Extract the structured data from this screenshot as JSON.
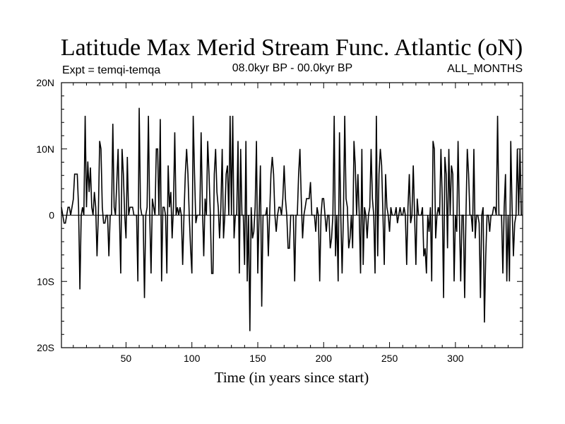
{
  "chart_data": {
    "type": "line",
    "title": "Latitude Max Merid Stream Func. Atlantic (oN)",
    "subtitle_left": "Expt = temqi-temqa",
    "subtitle_center": "08.0kyr BP - 00.0kyr BP",
    "subtitle_right": "ALL_MONTHS",
    "xlabel": "Time (in years since start)",
    "ylabel": "",
    "xlim": [
      1,
      351
    ],
    "ylim": [
      -20,
      20
    ],
    "x_ticks": [
      50,
      100,
      150,
      200,
      250,
      300
    ],
    "x_tick_labels": [
      "50",
      "100",
      "150",
      "200",
      "250",
      "300"
    ],
    "y_ticks": [
      -20,
      -10,
      0,
      10,
      20
    ],
    "y_tick_labels": [
      "20S",
      "10S",
      "0",
      "10N",
      "20N"
    ],
    "grid": false,
    "zero_line": true,
    "line_color": "#000000",
    "series": [
      {
        "x": [
          1,
          2,
          3,
          4,
          5,
          6,
          7,
          8,
          9,
          10,
          11,
          12,
          13,
          14,
          15,
          16,
          17,
          18,
          19,
          20,
          21,
          22,
          23,
          24,
          25,
          26,
          27,
          28,
          29,
          30,
          31,
          32,
          33,
          34,
          35,
          36,
          37,
          38,
          39,
          40,
          41,
          42,
          43,
          44,
          45,
          46,
          47,
          48,
          49,
          50,
          51,
          52,
          53,
          54,
          55,
          56,
          57,
          58,
          59,
          60,
          61,
          62,
          63,
          64,
          65,
          66,
          67,
          68,
          69,
          70,
          71,
          72,
          73,
          74,
          75,
          76,
          77,
          78,
          79,
          80,
          81,
          82,
          83,
          84,
          85,
          86,
          87,
          88,
          89,
          90,
          91,
          92,
          93,
          94,
          95,
          96,
          97,
          98,
          99,
          100,
          101,
          102,
          103,
          104,
          105,
          106,
          107,
          108,
          109,
          110,
          111,
          112,
          113,
          114,
          115,
          116,
          117,
          118,
          119,
          120,
          121,
          122,
          123,
          124,
          125,
          126,
          127,
          128,
          129,
          130,
          131,
          132,
          133,
          134,
          135,
          136,
          137,
          138,
          139,
          140,
          141,
          142,
          143,
          144,
          145,
          146,
          147,
          148,
          149,
          150,
          151,
          152,
          153,
          154,
          155,
          156,
          157,
          158,
          159,
          160,
          161,
          162,
          163,
          164,
          165,
          166,
          167,
          168,
          169,
          170,
          171,
          172,
          173,
          174,
          175,
          176,
          177,
          178,
          179,
          180,
          181,
          182,
          183,
          184,
          185,
          186,
          187,
          188,
          189,
          190,
          191,
          192,
          193,
          194,
          195,
          196,
          197,
          198,
          199,
          200,
          201,
          202,
          203,
          204,
          205,
          206,
          207,
          208,
          209,
          210,
          211,
          212,
          213,
          214,
          215,
          216,
          217,
          218,
          219,
          220,
          221,
          222,
          223,
          224,
          225,
          226,
          227,
          228,
          229,
          230,
          231,
          232,
          233,
          234,
          235,
          236,
          237,
          238,
          239,
          240,
          241,
          242,
          243,
          244,
          245,
          246,
          247,
          248,
          249,
          250,
          251,
          252,
          253,
          254,
          255,
          256,
          257,
          258,
          259,
          260,
          261,
          262,
          263,
          264,
          265,
          266,
          267,
          268,
          269,
          270,
          271,
          272,
          273,
          274,
          275,
          276,
          277,
          278,
          279,
          280,
          281,
          282,
          283,
          284,
          285,
          286,
          287,
          288,
          289,
          290,
          291,
          292,
          293,
          294,
          295,
          296,
          297,
          298,
          299,
          300,
          301,
          302,
          303,
          304,
          305,
          306,
          307,
          308,
          309,
          310,
          311,
          312,
          313,
          314,
          315,
          316,
          317,
          318,
          319,
          320,
          321,
          322,
          323,
          324,
          325,
          326,
          327,
          328,
          329,
          330,
          331,
          332,
          333,
          334,
          335,
          336,
          337,
          338,
          339,
          340,
          341,
          342,
          343,
          344,
          345,
          346,
          347,
          348,
          349,
          350,
          351
        ],
        "y": [
          1.2,
          0,
          -1.2,
          -1.2,
          0,
          1.2,
          1.2,
          0,
          1.2,
          2.4,
          6.2,
          6.2,
          6.2,
          1.2,
          -11.2,
          0,
          1.2,
          0,
          15,
          1.2,
          8.1,
          3.5,
          7.2,
          1.2,
          0,
          3.5,
          1.2,
          -6.2,
          0,
          11.2,
          10,
          1.2,
          -1.2,
          -1.2,
          0,
          0,
          -6.2,
          0,
          0,
          13.8,
          1.2,
          0,
          5,
          10,
          0,
          -8.8,
          10,
          6.2,
          0,
          -3.5,
          8.8,
          0,
          1.2,
          1.2,
          1.2,
          0,
          0,
          0,
          -10,
          16.2,
          1.2,
          0,
          0,
          -12.5,
          0,
          1.2,
          15,
          0,
          -8.8,
          2.5,
          1.2,
          0,
          10,
          10,
          0,
          14.5,
          -10,
          1.2,
          1.2,
          0,
          -8.8,
          7.5,
          1.2,
          3.5,
          -3.5,
          1.2,
          12.5,
          0,
          1.2,
          0,
          1.2,
          0,
          -7.5,
          0,
          6.2,
          10,
          6.2,
          0,
          -5,
          -8.8,
          15,
          6.2,
          -1.2,
          0,
          0,
          0,
          12.5,
          1.2,
          -6.2,
          2.5,
          0,
          11.2,
          6.2,
          0,
          -8.8,
          -8.8,
          6.2,
          10,
          3.5,
          1.2,
          -3.5,
          1.2,
          10,
          -3.5,
          0,
          6.2,
          7.5,
          0,
          15,
          0,
          15,
          -3.5,
          0,
          0,
          11.2,
          -8.8,
          10,
          0,
          0,
          -7.5,
          11.2,
          -10,
          0,
          -17.5,
          1.2,
          -3.5,
          -2.5,
          1.2,
          11.2,
          -8.8,
          0,
          7.5,
          -13.8,
          0,
          0,
          0,
          1.2,
          -6.2,
          0,
          6.2,
          8.8,
          6.2,
          0,
          -2.5,
          0,
          1.2,
          1.2,
          0,
          2.5,
          7.5,
          2.5,
          0,
          -5,
          -5,
          0,
          0,
          0,
          -10,
          0,
          0,
          6.2,
          10,
          2.5,
          -3.5,
          0,
          1.2,
          2.5,
          2.5,
          2.5,
          5,
          0,
          0,
          0,
          -2.5,
          1.2,
          0,
          -10,
          0,
          2.5,
          2.5,
          0,
          -2.5,
          0,
          0,
          -5,
          -3.5,
          0,
          15,
          -6.2,
          0,
          -10,
          12.5,
          0,
          -8.8,
          0,
          15,
          2.5,
          1.2,
          -5,
          -3.5,
          0,
          -5,
          11.2,
          7.5,
          0,
          6.2,
          0,
          -8.8,
          10,
          -7.5,
          1.2,
          0,
          -3.5,
          0,
          1.2,
          10,
          2.5,
          0,
          -8.8,
          15,
          -6.2,
          6.2,
          10,
          7.5,
          0,
          -7.5,
          6.2,
          1.2,
          0,
          -2.5,
          1.2,
          0,
          0,
          0,
          1.2,
          -1.2,
          0,
          1.2,
          0,
          0,
          1.2,
          0,
          -7.5,
          1.2,
          6.2,
          -1.2,
          0,
          7.5,
          0,
          -7.5,
          2.5,
          0,
          0,
          0,
          1.2,
          -6.2,
          -5,
          -8.8,
          0,
          -2.5,
          1.2,
          -10,
          11.2,
          10,
          -3.5,
          0,
          1.2,
          0,
          10,
          2.5,
          -12.5,
          8.8,
          6.2,
          -5,
          10,
          0,
          7.5,
          6.2,
          -10,
          0,
          -2.5,
          11.2,
          0,
          -10,
          0,
          0,
          -12.5,
          0,
          10,
          6.2,
          0,
          0,
          -2.5,
          10,
          -3.5,
          0,
          0,
          -1.2,
          -12.5,
          0,
          1.2,
          -16.2,
          -6.2,
          0,
          0,
          -2.5,
          0,
          0,
          1.2,
          1.2,
          0,
          15,
          0,
          0,
          0,
          -8.8,
          1.2,
          6.2,
          -10,
          0,
          -10,
          11.2,
          1.2,
          -6.2,
          -1.2,
          0,
          10,
          0,
          10,
          0,
          0
        ]
      }
    ]
  }
}
